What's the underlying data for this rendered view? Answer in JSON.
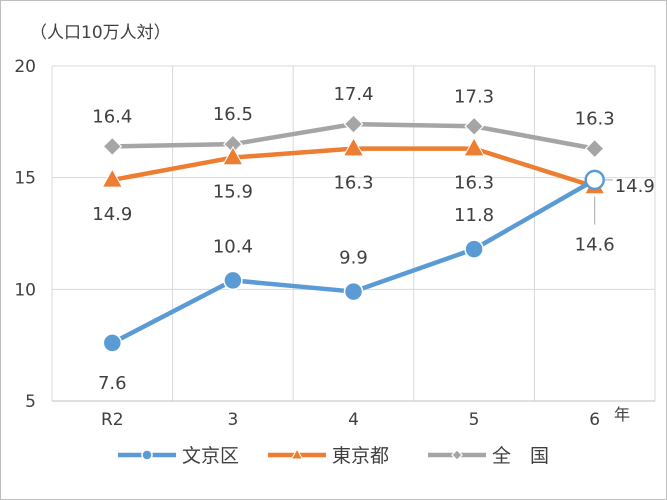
{
  "chart_data": {
    "type": "line",
    "unit_label": "（人口10万人対）",
    "x_unit_label": "年",
    "categories": [
      "R2",
      "3",
      "4",
      "5",
      "6"
    ],
    "y_ticks": [
      5,
      10,
      15,
      20
    ],
    "ylim": [
      5,
      20
    ],
    "grid": true,
    "legend_position": "bottom",
    "series": [
      {
        "name": "文京区",
        "color": "#5b9bd5",
        "marker": "circle",
        "values": [
          7.6,
          10.4,
          9.9,
          11.8,
          14.9
        ],
        "labels": [
          "7.6",
          "10.4",
          "9.9",
          "11.8",
          "14.9"
        ]
      },
      {
        "name": "東京都",
        "color": "#ed7d31",
        "marker": "triangle",
        "values": [
          14.9,
          15.9,
          16.3,
          16.3,
          14.6
        ],
        "labels": [
          "14.9",
          "15.9",
          "16.3",
          "16.3",
          "14.6"
        ]
      },
      {
        "name": "全　国",
        "color": "#a5a5a5",
        "marker": "diamond",
        "values": [
          16.4,
          16.5,
          17.4,
          17.3,
          16.3
        ],
        "labels": [
          "16.4",
          "16.5",
          "17.4",
          "17.3",
          "16.3"
        ]
      }
    ]
  }
}
